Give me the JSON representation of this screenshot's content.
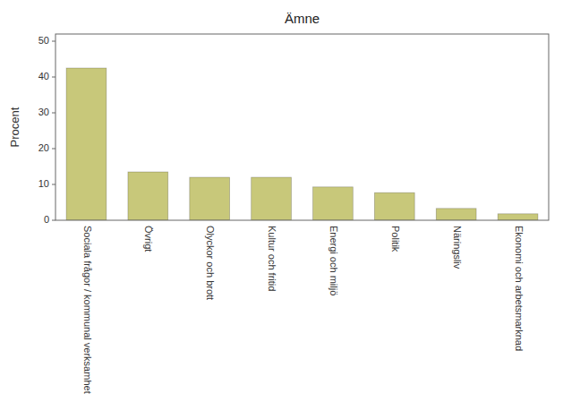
{
  "chart_data": {
    "type": "bar",
    "title": "Ämne",
    "ylabel": "Procent",
    "categories": [
      "Sociala frågor / kommunal verksamhet",
      "Övrigt",
      "Olyckor och brott",
      "Kultur och fritid",
      "Energi och miljö",
      "Politik",
      "Näringsliv",
      "Ekonomi och arbetsmarknad"
    ],
    "values": [
      42.5,
      13.5,
      12.0,
      12.0,
      9.3,
      7.7,
      3.3,
      1.8
    ],
    "color": "#c8c87a",
    "ylim": [
      0,
      52
    ],
    "yticks": [
      0,
      10,
      20,
      30,
      40,
      50
    ],
    "grid": false
  }
}
